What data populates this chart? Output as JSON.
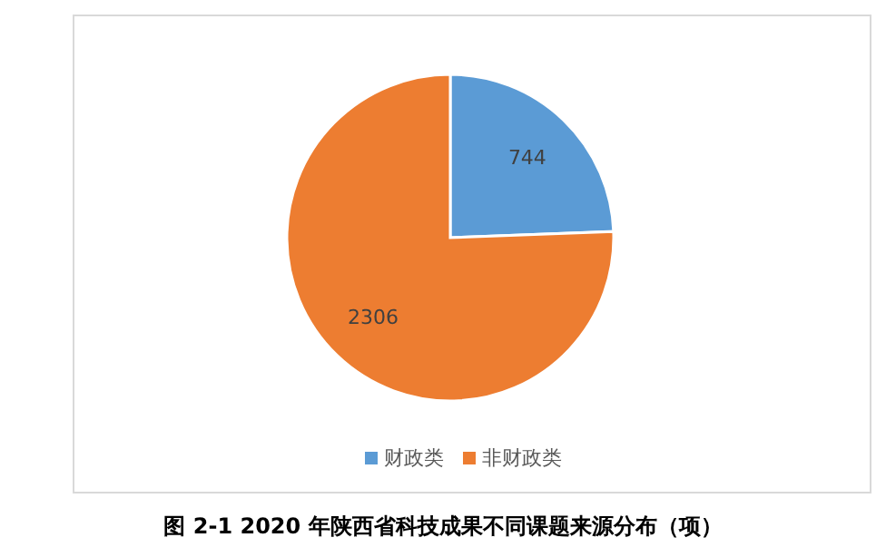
{
  "chart_data": {
    "type": "pie",
    "title": "图 2-1  2020 年陕西省科技成果不同课题来源分布（项）",
    "categories": [
      "财政类",
      "非财政类"
    ],
    "values": [
      744,
      2306
    ],
    "colors": [
      "#5b9bd5",
      "#ed7d31"
    ],
    "data_labels": true,
    "legend": "bottom"
  }
}
